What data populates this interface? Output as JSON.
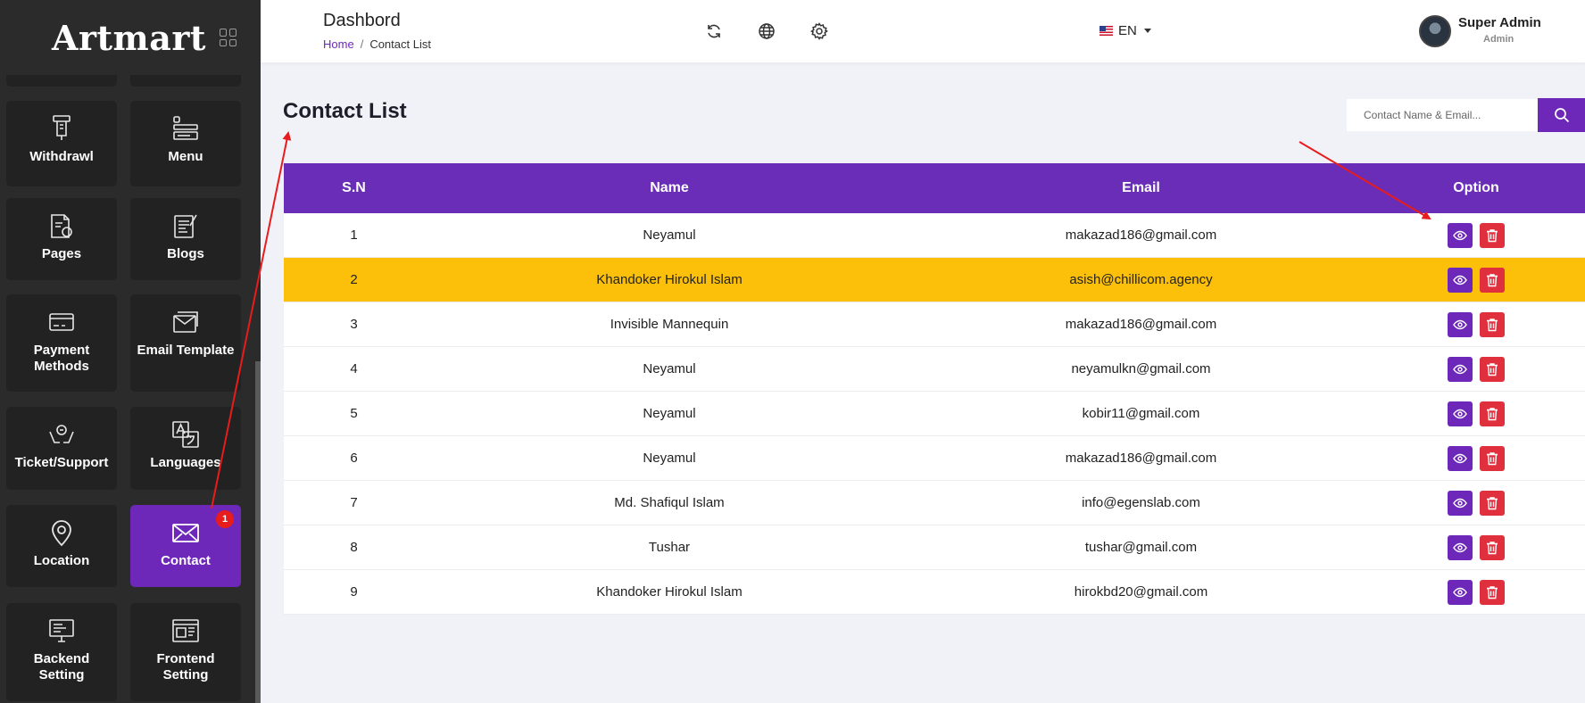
{
  "brand": {
    "name": "Artmart"
  },
  "sidebar": {
    "tiles": [
      {
        "label": "Withdrawl",
        "icon": "withdraw-icon"
      },
      {
        "label": "Menu",
        "icon": "menu-icon"
      },
      {
        "label": "Pages",
        "icon": "pages-icon"
      },
      {
        "label": "Blogs",
        "icon": "blogs-icon"
      },
      {
        "label": "Payment Methods",
        "icon": "payment-card-icon"
      },
      {
        "label": "Email Template",
        "icon": "email-template-icon"
      },
      {
        "label": "Ticket/Support",
        "icon": "support-hands-icon"
      },
      {
        "label": "Languages",
        "icon": "translate-icon"
      },
      {
        "label": "Location",
        "icon": "location-pin-icon"
      },
      {
        "label": "Contact",
        "icon": "envelope-icon",
        "active": true,
        "badge": "1"
      },
      {
        "label": "Backend Setting",
        "icon": "backend-monitor-icon"
      },
      {
        "label": "Frontend Setting",
        "icon": "frontend-window-icon"
      }
    ]
  },
  "header": {
    "title": "Dashbord",
    "breadcrumb": {
      "home": "Home",
      "separator": "/",
      "current": "Contact List"
    },
    "icons": [
      "refresh-icon",
      "globe-icon",
      "gear-icon"
    ],
    "language": "EN",
    "user": {
      "name": "Super Admin",
      "role": "Admin"
    }
  },
  "main": {
    "title": "Contact List",
    "search": {
      "placeholder": "Contact Name & Email..."
    },
    "table": {
      "columns": [
        "S.N",
        "Name",
        "Email",
        "Option"
      ],
      "rows": [
        {
          "sn": "1",
          "name": "Neyamul",
          "email": "makazad186@gmail.com"
        },
        {
          "sn": "2",
          "name": "Khandoker Hirokul Islam",
          "email": "asish@chillicom.agency",
          "highlighted": true
        },
        {
          "sn": "3",
          "name": "Invisible Mannequin",
          "email": "makazad186@gmail.com"
        },
        {
          "sn": "4",
          "name": "Neyamul",
          "email": "neyamulkn@gmail.com"
        },
        {
          "sn": "5",
          "name": "Neyamul",
          "email": "kobir11@gmail.com"
        },
        {
          "sn": "6",
          "name": "Neyamul",
          "email": "makazad186@gmail.com"
        },
        {
          "sn": "7",
          "name": "Md. Shafiqul Islam",
          "email": "info@egenslab.com"
        },
        {
          "sn": "8",
          "name": "Tushar",
          "email": "tushar@gmail.com"
        },
        {
          "sn": "9",
          "name": "Khandoker Hirokul Islam",
          "email": "hirokbd20@gmail.com"
        }
      ]
    }
  },
  "colors": {
    "accent": "#6d28b9",
    "header_row": "#6a2db8",
    "highlight_row": "#fdc00a",
    "delete": "#e0303d",
    "annotation_arrow": "#e81c1c"
  }
}
